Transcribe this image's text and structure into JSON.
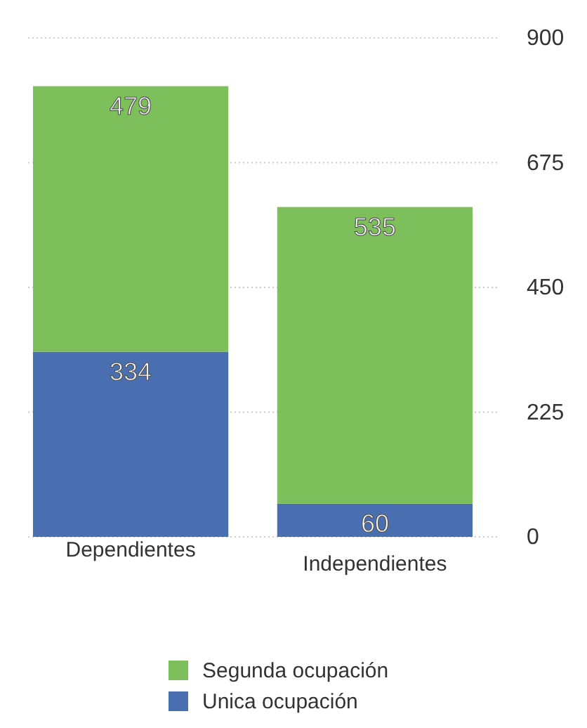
{
  "chart_data": {
    "type": "bar",
    "stacked": true,
    "categories": [
      "Dependientes",
      "Independientes"
    ],
    "series": [
      {
        "name": "Unica ocupación",
        "color": "#4a6fb0",
        "values": [
          334,
          60
        ]
      },
      {
        "name": "Segunda ocupación",
        "color": "#7dbf5a",
        "values": [
          479,
          535
        ]
      }
    ],
    "ylim": [
      0,
      900
    ],
    "yticks": [
      0,
      225,
      450,
      675,
      900
    ],
    "grid": "y",
    "data_labels": true,
    "legend": "bottom"
  }
}
